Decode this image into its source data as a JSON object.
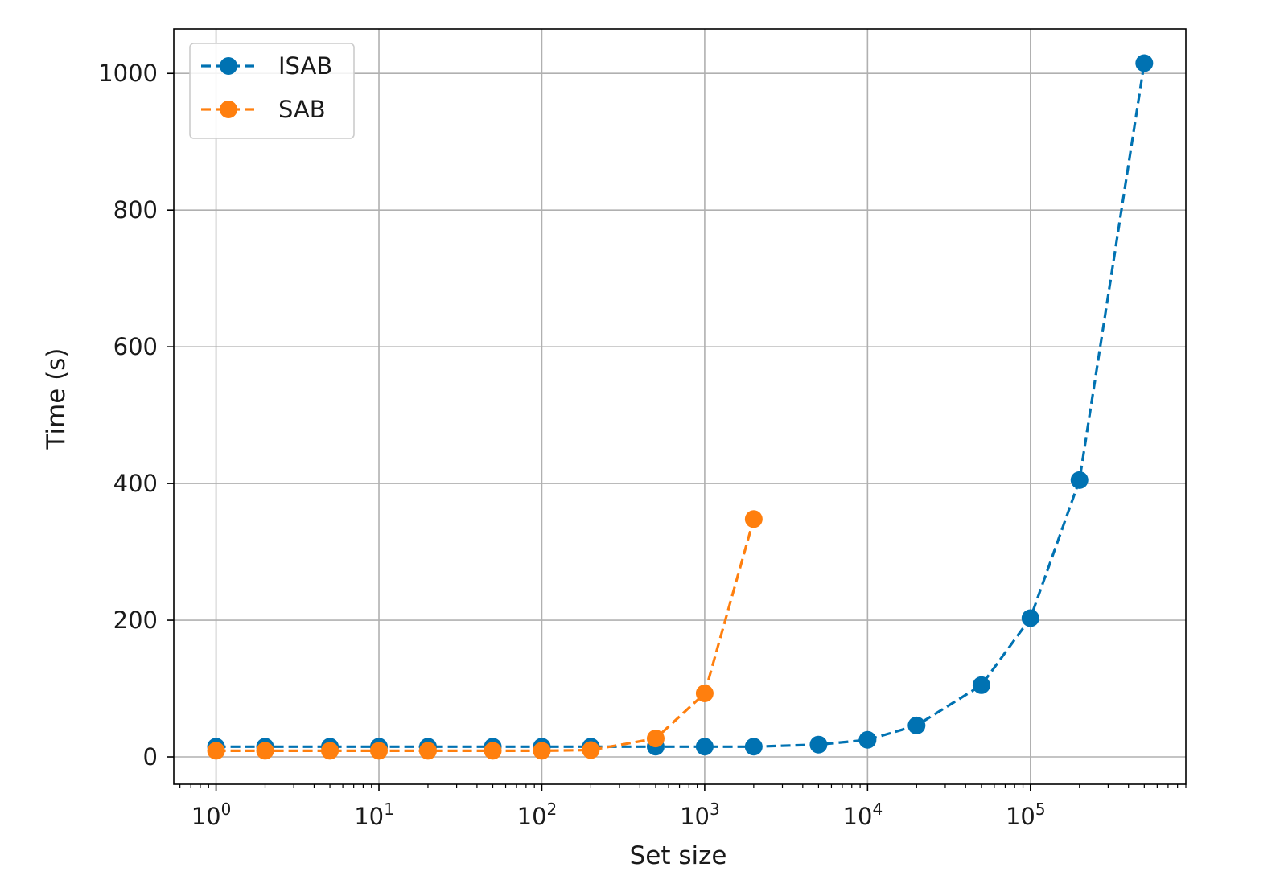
{
  "chart_data": {
    "type": "line",
    "title": "",
    "xlabel": "Set size",
    "ylabel": "Time (s)",
    "xscale": "log",
    "xlim": [
      0.55,
      900000
    ],
    "ylim": [
      -40,
      1065
    ],
    "grid": true,
    "legend_position": "top-left",
    "x_ticks": [
      {
        "value": 1,
        "base": "10",
        "exp": "0"
      },
      {
        "value": 10,
        "base": "10",
        "exp": "1"
      },
      {
        "value": 100,
        "base": "10",
        "exp": "2"
      },
      {
        "value": 1000,
        "base": "10",
        "exp": "3"
      },
      {
        "value": 10000,
        "base": "10",
        "exp": "4"
      },
      {
        "value": 100000,
        "base": "10",
        "exp": "5"
      }
    ],
    "y_ticks": [
      0,
      200,
      400,
      600,
      800,
      1000
    ],
    "y_tick_labels": [
      "0",
      "200",
      "400",
      "600",
      "800",
      "1000"
    ],
    "series": [
      {
        "name": "ISAB",
        "color": "#0072b2",
        "line_style": "dashed",
        "marker": "circle",
        "x": [
          1,
          2,
          5,
          10,
          20,
          50,
          100,
          200,
          500,
          1000,
          2000,
          5000,
          10000,
          20000,
          50000,
          100000,
          200000,
          500000
        ],
        "y": [
          15,
          15,
          15,
          15,
          15,
          15,
          15,
          15,
          15,
          15,
          15,
          18,
          25,
          46,
          105,
          203,
          405,
          1015
        ]
      },
      {
        "name": "SAB",
        "color": "#ff7f0e",
        "line_style": "dashed",
        "marker": "circle",
        "x": [
          1,
          2,
          5,
          10,
          20,
          50,
          100,
          200,
          500,
          1000,
          2000
        ],
        "y": [
          9,
          9,
          9,
          9,
          9,
          9,
          9,
          10,
          27,
          93,
          348
        ]
      }
    ]
  }
}
